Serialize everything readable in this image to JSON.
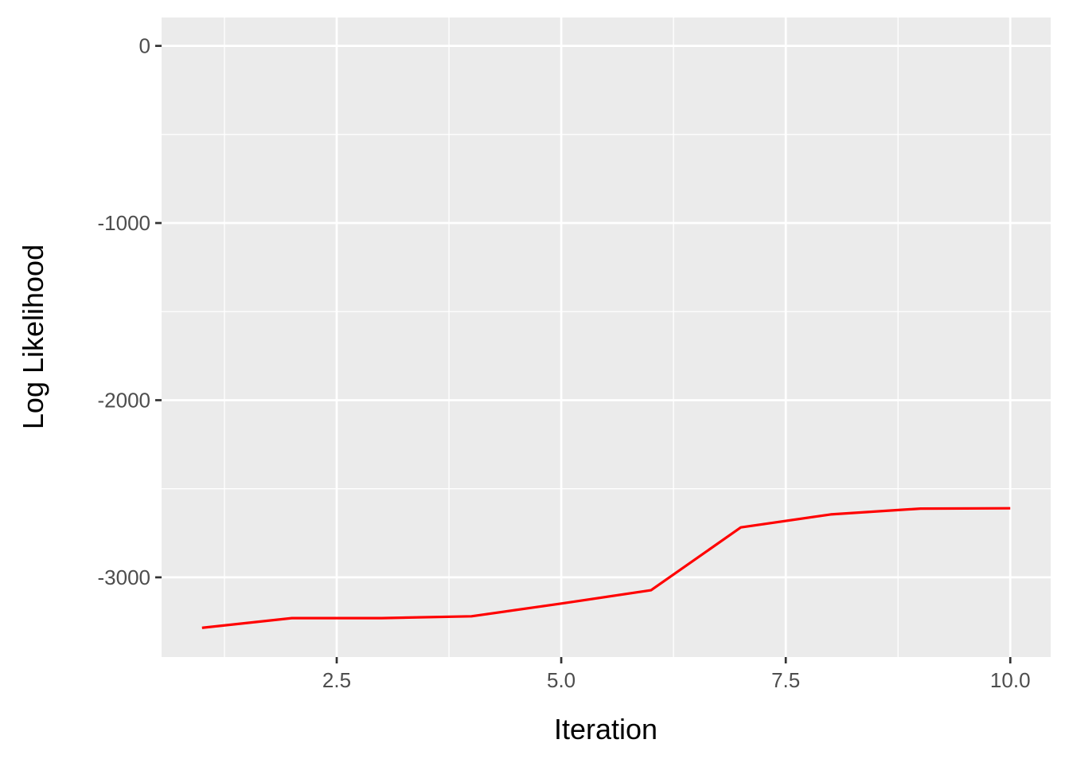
{
  "chart_data": {
    "type": "line",
    "xlabel": "Iteration",
    "ylabel": "Log Likelihood",
    "xlim": [
      0.55,
      10.45
    ],
    "ylim": [
      -3450,
      160
    ],
    "x_ticks": [
      2.5,
      5.0,
      7.5,
      10.0
    ],
    "x_tick_labels": [
      "2.5",
      "5.0",
      "7.5",
      "10.0"
    ],
    "y_ticks": [
      0,
      -1000,
      -2000,
      -3000
    ],
    "y_tick_labels": [
      "0",
      "-1000",
      "-2000",
      "-3000"
    ],
    "grid": true,
    "legend": "none",
    "series": [
      {
        "color": "#ff0000",
        "x": [
          1,
          2,
          3,
          4,
          5,
          6,
          7,
          8,
          9,
          10
        ],
        "y": [
          -3285,
          -3230,
          -3230,
          -3220,
          -3148,
          -3073,
          -2718,
          -2645,
          -2612,
          -2610
        ]
      }
    ]
  },
  "colors": {
    "panel_background": "#ebebeb",
    "grid": "#ffffff",
    "line": "#ff0000"
  }
}
